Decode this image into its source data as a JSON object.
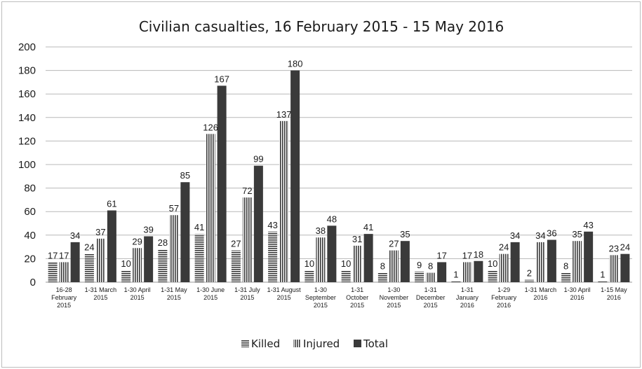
{
  "chart_data": {
    "type": "bar",
    "title": "Civilian casualties, 16 February 2015 - 15 May 2016",
    "xlabel": "",
    "ylabel": "",
    "ylim": [
      0,
      200
    ],
    "yticks": [
      0,
      20,
      40,
      60,
      80,
      100,
      120,
      140,
      160,
      180,
      200
    ],
    "grid": true,
    "legend_position": "bottom",
    "categories": [
      [
        "16-28",
        "February",
        "2015"
      ],
      [
        "1-31 March",
        "2015"
      ],
      [
        "1-30 April",
        "2015"
      ],
      [
        "1-31 May",
        "2015"
      ],
      [
        "1-30 June",
        "2015"
      ],
      [
        "1-31 July",
        "2015"
      ],
      [
        "1-31 August",
        "2015"
      ],
      [
        "1-30",
        "September",
        "2015"
      ],
      [
        "1-31",
        "October",
        "2015"
      ],
      [
        "1-30",
        "November",
        "2015"
      ],
      [
        "1-31",
        "December",
        "2015"
      ],
      [
        "1-31",
        "January",
        "2016"
      ],
      [
        "1-29",
        "February",
        "2016"
      ],
      [
        "1-31 March",
        "2016"
      ],
      [
        "1-30 April",
        "2016"
      ],
      [
        "1-15 May",
        "2016"
      ]
    ],
    "series": [
      {
        "name": "Killed",
        "pattern": "horizontal",
        "values": [
          17,
          24,
          10,
          28,
          41,
          27,
          43,
          10,
          10,
          8,
          9,
          1,
          10,
          2,
          8,
          1
        ]
      },
      {
        "name": "Injured",
        "pattern": "vertical",
        "values": [
          17,
          37,
          29,
          57,
          126,
          72,
          137,
          38,
          31,
          27,
          8,
          17,
          24,
          34,
          35,
          23
        ]
      },
      {
        "name": "Total",
        "pattern": "solid",
        "values": [
          34,
          61,
          39,
          85,
          167,
          99,
          180,
          48,
          41,
          35,
          17,
          18,
          34,
          36,
          43,
          24
        ]
      }
    ],
    "colors": {
      "bar": "#3a3a3a",
      "grid": "#b8b8b8",
      "axis": "#9a9a9a"
    }
  }
}
